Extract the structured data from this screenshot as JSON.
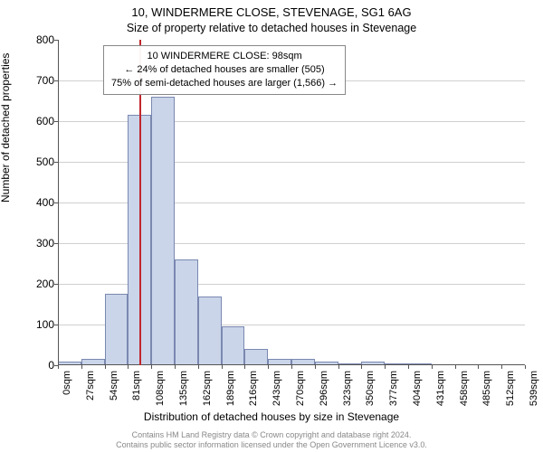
{
  "titles": {
    "main": "10, WINDERMERE CLOSE, STEVENAGE, SG1 6AG",
    "sub": "Size of property relative to detached houses in Stevenage",
    "y_axis": "Number of detached properties",
    "x_axis": "Distribution of detached houses by size in Stevenage"
  },
  "chart": {
    "type": "histogram",
    "background_color": "#ffffff",
    "grid_color": "#d0d0d0",
    "axis_color": "#555555",
    "bar_fill": "#cad5ea",
    "bar_border": "#7a88b0",
    "marker_color": "#c1272d",
    "ylim": [
      0,
      800
    ],
    "ytick_step": 100,
    "x_tick_labels": [
      "0sqm",
      "27sqm",
      "54sqm",
      "81sqm",
      "108sqm",
      "135sqm",
      "162sqm",
      "189sqm",
      "216sqm",
      "243sqm",
      "270sqm",
      "296sqm",
      "323sqm",
      "350sqm",
      "377sqm",
      "404sqm",
      "431sqm",
      "458sqm",
      "485sqm",
      "512sqm",
      "539sqm"
    ],
    "bars": [
      10,
      15,
      175,
      615,
      660,
      260,
      170,
      95,
      40,
      15,
      15,
      10,
      5,
      8,
      5,
      2,
      0,
      0,
      0,
      0
    ],
    "marker_x_value": 98,
    "x_max": 560
  },
  "annotation": {
    "line1": "10 WINDERMERE CLOSE: 98sqm",
    "line2": "← 24% of detached houses are smaller (505)",
    "line3": "75% of semi-detached houses are larger (1,566) →"
  },
  "footer": {
    "line1": "Contains HM Land Registry data © Crown copyright and database right 2024.",
    "line2": "Contains public sector information licensed under the Open Government Licence v3.0."
  }
}
